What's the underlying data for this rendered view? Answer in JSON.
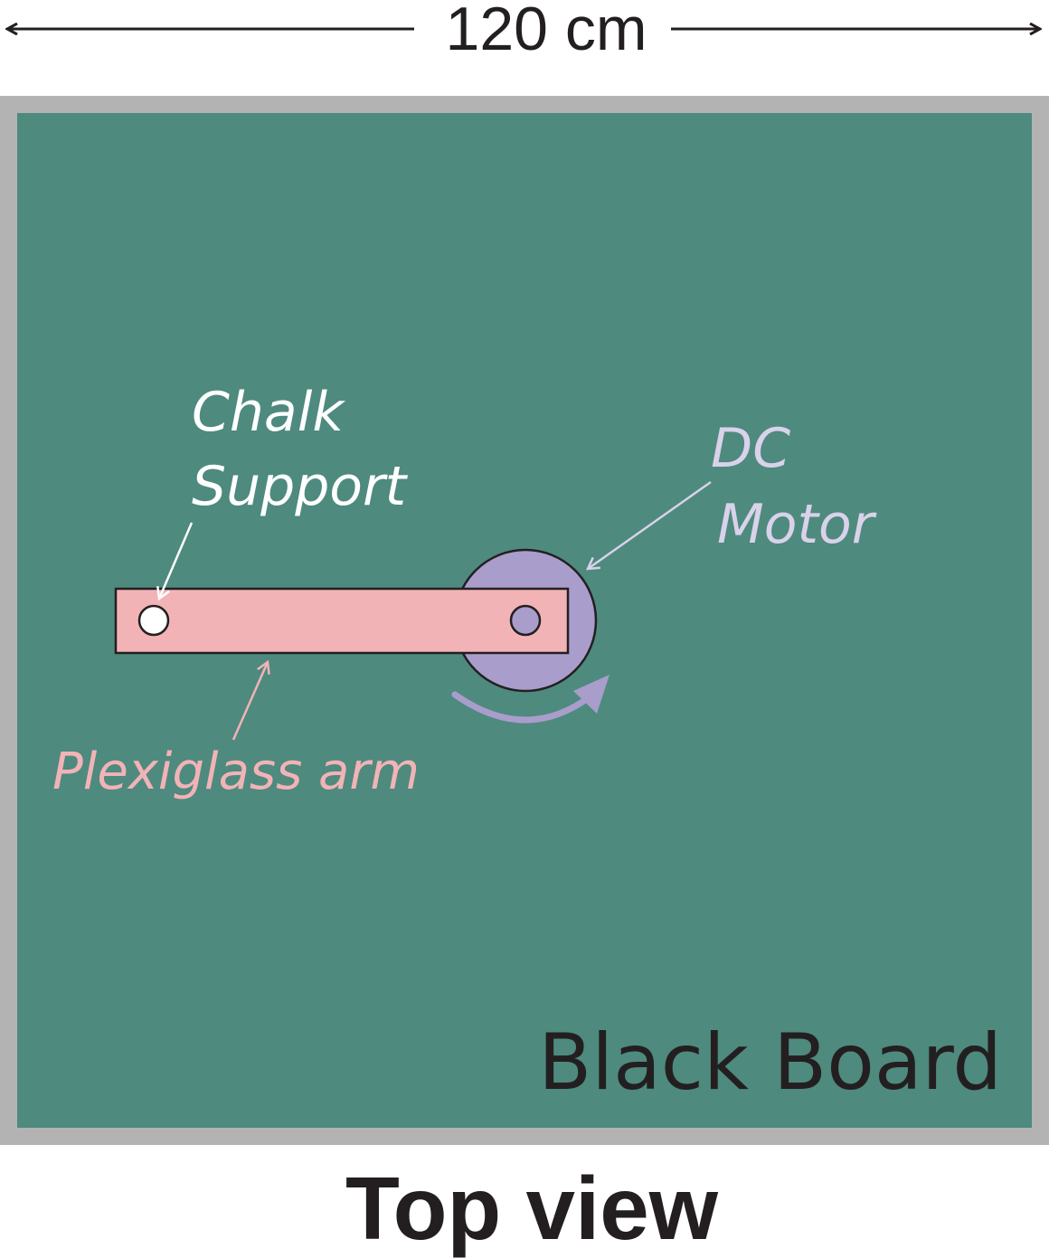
{
  "dimension": {
    "label": "120 cm"
  },
  "board": {
    "label": "Black Board"
  },
  "chalk_support": {
    "line1": "Chalk",
    "line2": "Support"
  },
  "dc_motor": {
    "line1": "DC",
    "line2": "Motor"
  },
  "arm": {
    "label": "Plexiglass arm"
  },
  "caption": "Top view",
  "colors": {
    "board": "#4e8a7e",
    "frame": "#b3b3b3",
    "arm": "#f2b3b7",
    "motor": "#a99dcc",
    "chalk_label": "#ffffff",
    "motor_label": "#d9d2ea",
    "arm_label": "#f2b3b7",
    "text": "#231f20"
  },
  "icons": [
    "double-arrow-icon",
    "rotation-arrow-icon"
  ]
}
